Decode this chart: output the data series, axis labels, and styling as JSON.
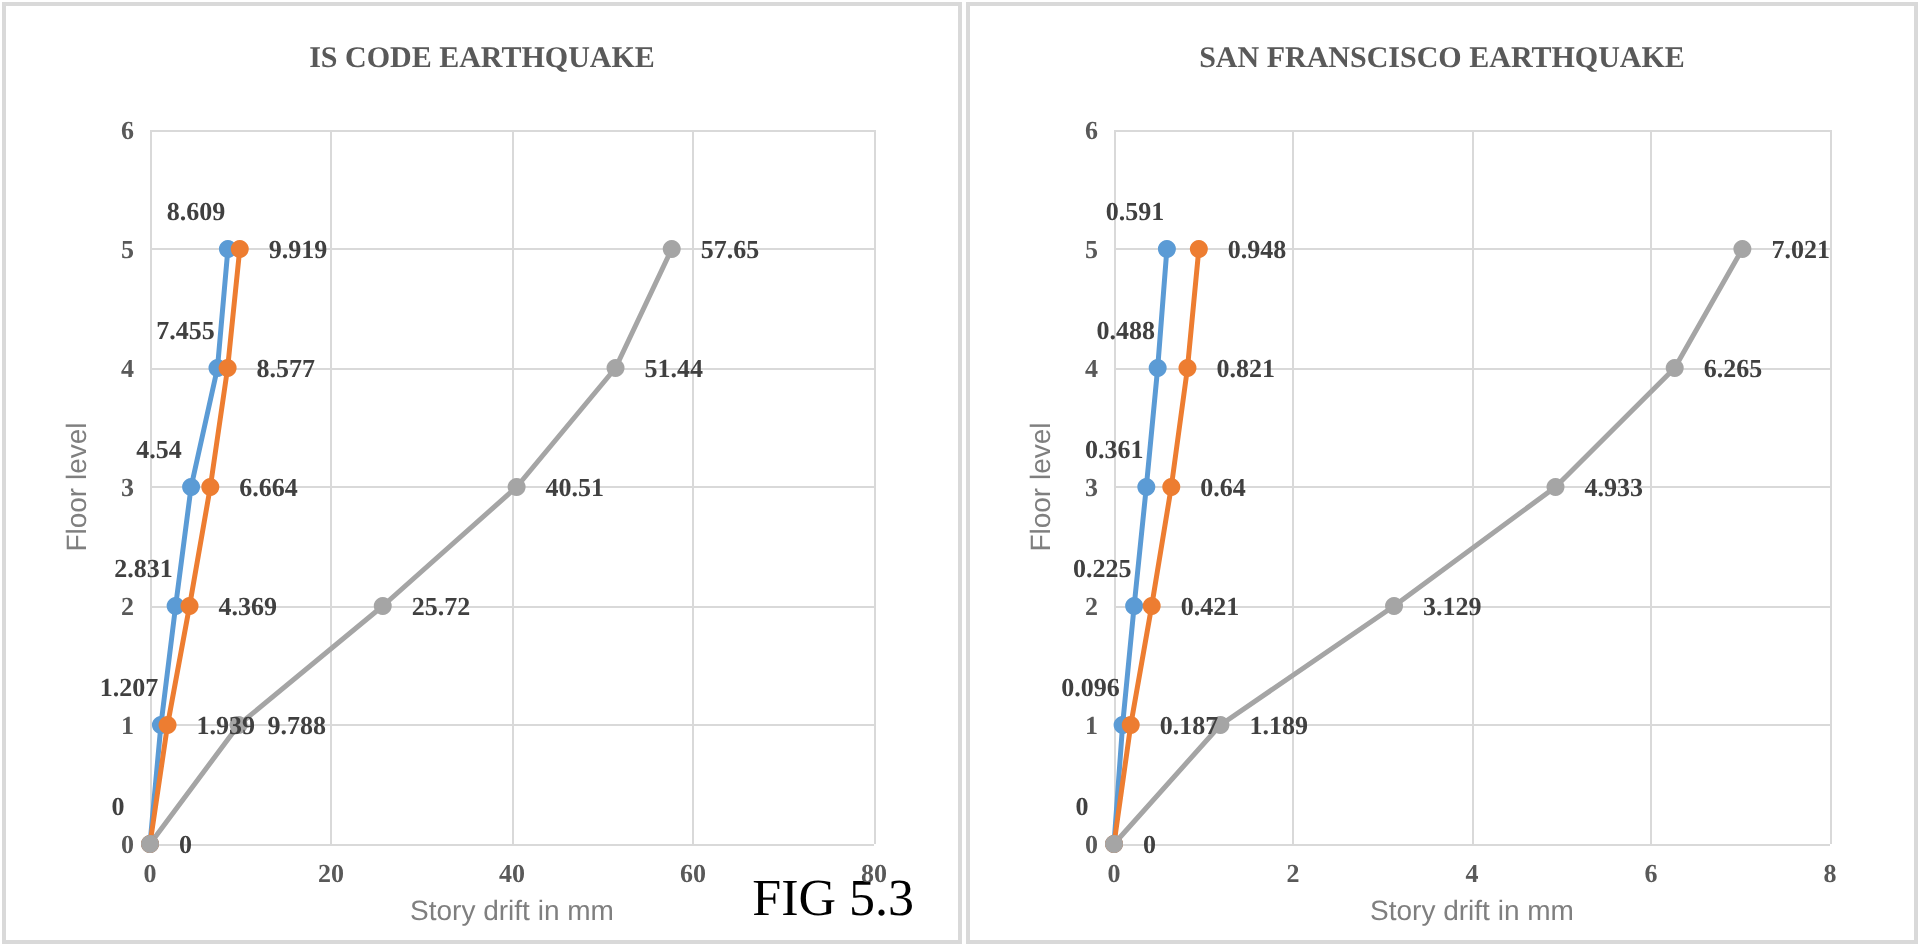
{
  "chart_data": [
    {
      "type": "line",
      "orientation": "horizontal",
      "title": "IS CODE EARTHQUAKE",
      "xlabel": "Story drift in mm",
      "ylabel": "Floor level",
      "categories": [
        "6",
        "5",
        "4",
        "3",
        "2",
        "1",
        "0"
      ],
      "xlim": [
        0,
        80
      ],
      "xticks": [
        0,
        20,
        40,
        60,
        80
      ],
      "grid": true,
      "marker": "circle",
      "line_style": "solid",
      "annotations": [
        "FIG 5.3"
      ],
      "series": [
        {
          "color": "#5b9bd5",
          "values": [
            null,
            8.609,
            7.455,
            4.54,
            2.831,
            1.207,
            0
          ],
          "value_labels": [
            null,
            "8.609",
            "7.455",
            "4.54",
            "2.831",
            "1.207",
            "0"
          ]
        },
        {
          "color": "#ed7d31",
          "values": [
            null,
            9.919,
            8.577,
            6.664,
            4.369,
            1.939,
            0
          ],
          "value_labels": [
            null,
            "9.919",
            "8.577",
            "6.664",
            "4.369",
            "1.939",
            null
          ]
        },
        {
          "color": "#a5a5a5",
          "values": [
            null,
            57.65,
            51.44,
            40.51,
            25.72,
            9.788,
            0
          ],
          "value_labels": [
            null,
            "57.65",
            "51.44",
            "40.51",
            "25.72",
            "9.788",
            "0"
          ]
        }
      ]
    },
    {
      "type": "line",
      "orientation": "horizontal",
      "title": "SAN FRANSCISCO EARTHQUAKE",
      "xlabel": "Story drift in mm",
      "ylabel": "Floor level",
      "categories": [
        "6",
        "5",
        "4",
        "3",
        "2",
        "1",
        "0"
      ],
      "xlim": [
        0,
        8
      ],
      "xticks": [
        0,
        2,
        4,
        6,
        8
      ],
      "grid": true,
      "marker": "circle",
      "line_style": "solid",
      "series": [
        {
          "color": "#5b9bd5",
          "values": [
            null,
            0.591,
            0.488,
            0.361,
            0.225,
            0.096,
            0
          ],
          "value_labels": [
            null,
            "0.591",
            "0.488",
            "0.361",
            "0.225",
            "0.096",
            "0"
          ]
        },
        {
          "color": "#ed7d31",
          "values": [
            null,
            0.948,
            0.821,
            0.64,
            0.421,
            0.187,
            0
          ],
          "value_labels": [
            null,
            "0.948",
            "0.821",
            "0.64",
            "0.421",
            "0.187",
            null
          ]
        },
        {
          "color": "#a5a5a5",
          "values": [
            null,
            7.021,
            6.265,
            4.933,
            3.129,
            1.189,
            0
          ],
          "value_labels": [
            null,
            "7.021",
            "6.265",
            "4.933",
            "3.129",
            "1.189",
            "0"
          ]
        }
      ]
    }
  ]
}
